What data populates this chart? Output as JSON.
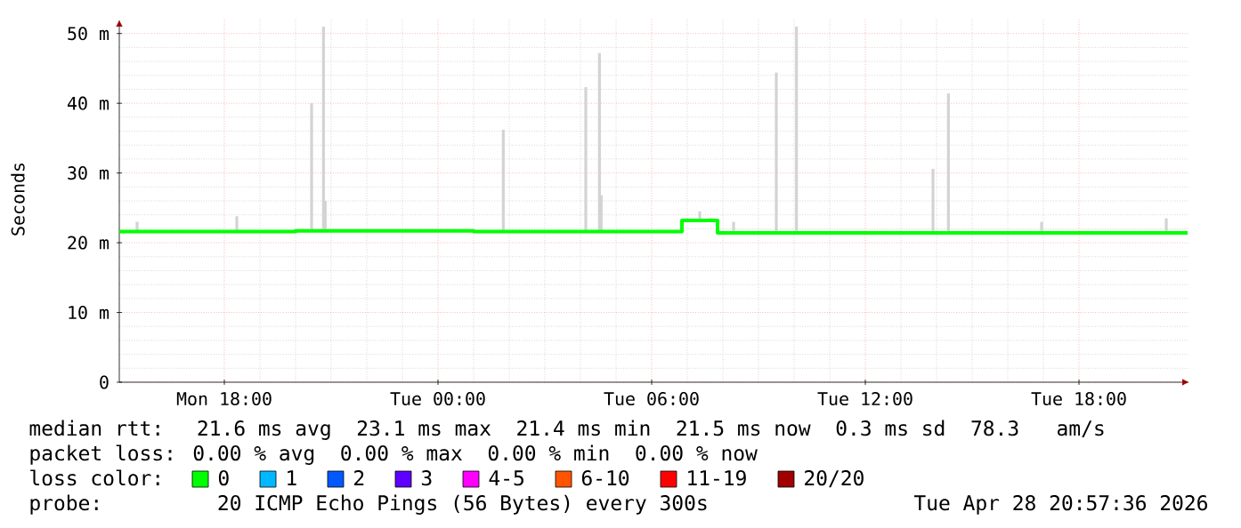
{
  "chart_data": {
    "type": "bar",
    "ylabel": "Seconds",
    "x": [
      "2026-04-27T15:33",
      "2026-04-27T18:21",
      "2026-04-27T20:27",
      "2026-04-27T20:47",
      "2026-04-27T20:50",
      "2026-04-28T01:50",
      "2026-04-28T04:09",
      "2026-04-28T04:32",
      "2026-04-28T04:35",
      "2026-04-28T07:21",
      "2026-04-28T08:18",
      "2026-04-28T09:30",
      "2026-04-28T10:04",
      "2026-04-28T13:54",
      "2026-04-28T14:20",
      "2026-04-28T16:57",
      "2026-04-28T20:27"
    ],
    "series": [
      {
        "color": "#d3d3d3",
        "base": [
          21.5,
          21.5,
          21.5,
          21.5,
          21.5,
          21.5,
          21.5,
          21.5,
          21.5,
          23.2,
          21.4,
          21.4,
          21.4,
          21.4,
          21.4,
          21.4,
          21.4
        ],
        "values": [
          1.5,
          2.3,
          18.5,
          29.5,
          4.5,
          14.7,
          20.8,
          25.7,
          5.3,
          1.3,
          1.6,
          23,
          29.6,
          9.2,
          20,
          1.6,
          2.1
        ]
      },
      {
        "type": "step",
        "name": "0",
        "color": "#00ff00",
        "x": [
          "2026-04-27T15:03",
          "2026-04-27T20:00",
          "2026-04-28T01:00",
          "2026-04-28T06:48",
          "2026-04-28T06:51",
          "2026-04-28T07:48",
          "2026-04-28T07:51",
          "2026-04-28T14:00",
          "2026-04-28T21:03"
        ],
        "values": [
          21.6,
          21.7,
          21.6,
          21.6,
          23.2,
          23.2,
          21.4,
          21.4,
          21.4
        ]
      },
      {
        "type": "step",
        "name": "1",
        "color": "#00b8ff",
        "values": [
          null,
          null,
          null,
          null,
          null,
          null,
          null,
          null,
          null,
          null,
          null,
          null,
          null,
          null,
          null,
          null,
          null
        ]
      },
      {
        "type": "step",
        "name": "2",
        "color": "#0059ff",
        "values": [
          null,
          null,
          null,
          null,
          null,
          null,
          null,
          null,
          null,
          null,
          null,
          null,
          null,
          null,
          null,
          null,
          null
        ]
      },
      {
        "type": "step",
        "name": "3",
        "color": "#5e00ff",
        "values": [
          null,
          null,
          null,
          null,
          null,
          null,
          null,
          null,
          null,
          null,
          null,
          null,
          null,
          null,
          null,
          null,
          null
        ]
      },
      {
        "type": "step",
        "name": "4-5",
        "color": "#ff00ff",
        "values": [
          null,
          null,
          null,
          null,
          null,
          null,
          null,
          null,
          null,
          null,
          null,
          null,
          null,
          null,
          null,
          null,
          null
        ]
      },
      {
        "type": "step",
        "name": "6-10",
        "color": "#ff5500",
        "values": [
          null,
          null,
          null,
          null,
          null,
          null,
          null,
          null,
          null,
          null,
          null,
          null,
          null,
          null,
          null,
          null,
          null
        ]
      },
      {
        "type": "step",
        "name": "11-19",
        "color": "#ff0000",
        "values": [
          null,
          null,
          null,
          null,
          null,
          null,
          null,
          null,
          null,
          null,
          null,
          null,
          null,
          null,
          null,
          null,
          null
        ]
      },
      {
        "type": "step",
        "name": "20/20",
        "color": "#a10000",
        "values": [
          null,
          null,
          null,
          null,
          null,
          null,
          null,
          null,
          null,
          null,
          null,
          null,
          null,
          null,
          null,
          null,
          null
        ]
      }
    ],
    "legend_title": "loss color:",
    "legend": "bottom",
    "xlim": [
      "2026-04-27T15:03",
      "2026-04-28T21:06"
    ],
    "ylim": [
      0,
      52
    ],
    "xticks": [
      {
        "value": "2026-04-27T18:00",
        "label": "Mon 18:00"
      },
      {
        "value": "2026-04-28T00:00",
        "label": "Tue 00:00"
      },
      {
        "value": "2026-04-28T06:00",
        "label": "Tue 06:00"
      },
      {
        "value": "2026-04-28T12:00",
        "label": "Tue 12:00"
      },
      {
        "value": "2026-04-28T18:00",
        "label": "Tue 18:00"
      }
    ],
    "yticks": [
      0,
      {
        "value": 10,
        "label": "10 m"
      },
      {
        "value": 20,
        "label": "20 m"
      },
      {
        "value": 30,
        "label": "30 m"
      },
      {
        "value": 40,
        "label": "40 m"
      },
      {
        "value": 50,
        "label": "50 m"
      }
    ],
    "grid": true,
    "annotations": [
      "median rtt:  21.6 ms avg  23.1 ms max  21.4 ms min  21.5 ms now  0.3 ms sd  78.3   am/s",
      "packet loss: 0.00 % avg  0.00 % max  0.00 % min  0.00 % now",
      "probe:       20 ICMP Echo Pings (56 Bytes) every 300s",
      "Tue Apr 28 20:57:36 2026"
    ]
  }
}
